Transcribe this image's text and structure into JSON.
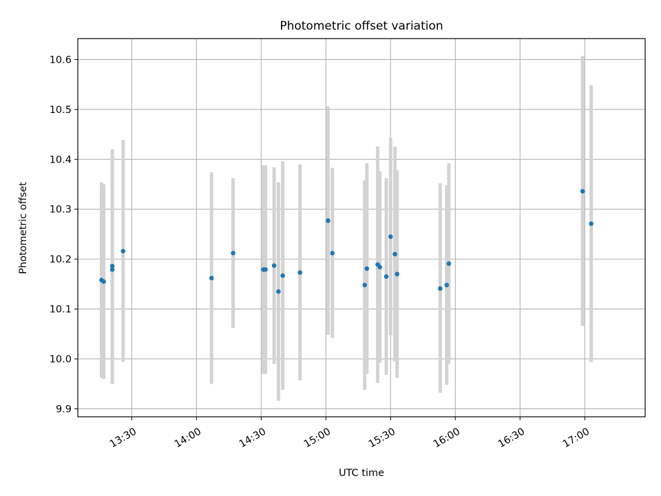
{
  "chart_data": {
    "type": "scatter",
    "title": "Photometric offset variation",
    "xlabel": "UTC time",
    "ylabel": "Photometric offset",
    "xlim": [
      "13:05",
      "17:28"
    ],
    "ylim": [
      9.884,
      10.642
    ],
    "x_ticks": [
      "13:30",
      "14:00",
      "14:30",
      "15:00",
      "15:30",
      "16:00",
      "16:30",
      "17:00"
    ],
    "y_ticks": [
      "9.9",
      "10.0",
      "10.1",
      "10.2",
      "10.3",
      "10.4",
      "10.5",
      "10.6"
    ],
    "grid": true,
    "colors": {
      "point": "#1f77b4",
      "errorbar": "#d3d3d3",
      "grid": "#b0b0b0"
    },
    "points": [
      {
        "x": "13:16",
        "y": 10.158,
        "low": 9.962,
        "high": 10.354
      },
      {
        "x": "13:17",
        "y": 10.155,
        "low": 9.96,
        "high": 10.35
      },
      {
        "x": "13:21",
        "y": 10.179,
        "low": 9.95,
        "high": 10.408
      },
      {
        "x": "13:21",
        "y": 10.186,
        "low": 9.952,
        "high": 10.42
      },
      {
        "x": "13:26",
        "y": 10.216,
        "low": 9.994,
        "high": 10.439
      },
      {
        "x": "14:07",
        "y": 10.162,
        "low": 9.95,
        "high": 10.374
      },
      {
        "x": "14:17",
        "y": 10.212,
        "low": 10.062,
        "high": 10.362
      },
      {
        "x": "14:31",
        "y": 10.179,
        "low": 9.97,
        "high": 10.388
      },
      {
        "x": "14:32",
        "y": 10.179,
        "low": 9.97,
        "high": 10.388
      },
      {
        "x": "14:36",
        "y": 10.187,
        "low": 9.99,
        "high": 10.384
      },
      {
        "x": "14:38",
        "y": 10.135,
        "low": 9.916,
        "high": 10.354
      },
      {
        "x": "14:40",
        "y": 10.167,
        "low": 9.938,
        "high": 10.396
      },
      {
        "x": "14:48",
        "y": 10.173,
        "low": 9.957,
        "high": 10.39
      },
      {
        "x": "15:01",
        "y": 10.277,
        "low": 10.048,
        "high": 10.506
      },
      {
        "x": "15:03",
        "y": 10.212,
        "low": 10.042,
        "high": 10.383
      },
      {
        "x": "15:18",
        "y": 10.148,
        "low": 9.938,
        "high": 10.358
      },
      {
        "x": "15:19",
        "y": 10.181,
        "low": 9.97,
        "high": 10.392
      },
      {
        "x": "15:24",
        "y": 10.189,
        "low": 9.952,
        "high": 10.426
      },
      {
        "x": "15:25",
        "y": 10.184,
        "low": 9.992,
        "high": 10.376
      },
      {
        "x": "15:28",
        "y": 10.165,
        "low": 9.968,
        "high": 10.362
      },
      {
        "x": "15:30",
        "y": 10.245,
        "low": 10.048,
        "high": 10.443
      },
      {
        "x": "15:32",
        "y": 10.21,
        "low": 9.995,
        "high": 10.425
      },
      {
        "x": "15:33",
        "y": 10.17,
        "low": 9.962,
        "high": 10.378
      },
      {
        "x": "15:53",
        "y": 10.141,
        "low": 9.932,
        "high": 10.352
      },
      {
        "x": "15:56",
        "y": 10.148,
        "low": 9.948,
        "high": 10.348
      },
      {
        "x": "15:57",
        "y": 10.191,
        "low": 9.99,
        "high": 10.392
      },
      {
        "x": "16:59",
        "y": 10.336,
        "low": 10.066,
        "high": 10.607
      },
      {
        "x": "17:03",
        "y": 10.271,
        "low": 9.994,
        "high": 10.548
      }
    ]
  }
}
